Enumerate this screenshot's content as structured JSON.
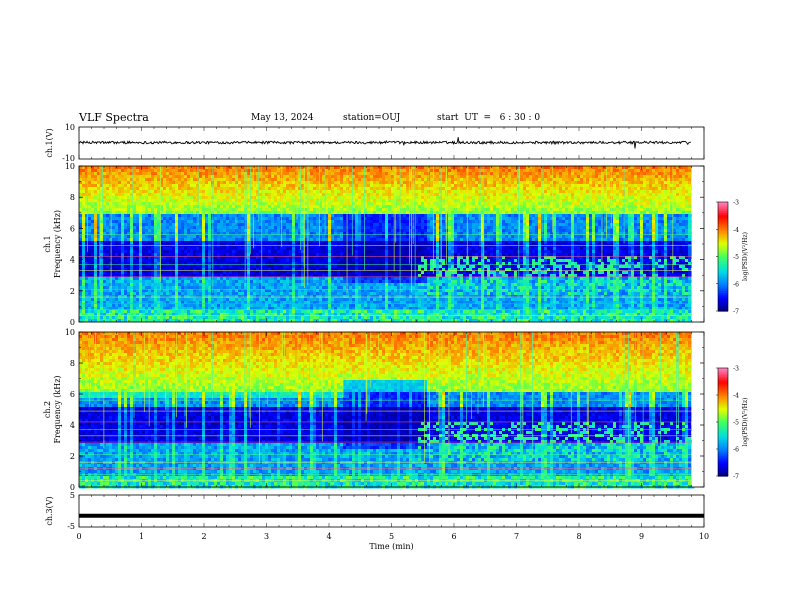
{
  "header": {
    "title": "VLF Spectra",
    "date": "May 13, 2024",
    "station": "station=OUJ",
    "start": "start  UT  =   6 : 30 : 0"
  },
  "chart_data": {
    "type": "heatmap",
    "xlabel": "Time  (min)",
    "x_ticks": [
      "0",
      "1",
      "2",
      "3",
      "4",
      "5",
      "6",
      "7",
      "8",
      "9",
      "10"
    ],
    "xlim": [
      0,
      10
    ],
    "data_end_min": 9.8,
    "panels": [
      {
        "id": "ch1-waveform",
        "type": "line",
        "ylabel": "ch.1(V)",
        "y_ticks": [
          "10",
          "-10"
        ],
        "ylim": [
          -10,
          10
        ]
      },
      {
        "id": "ch1-spectrogram",
        "type": "heatmap",
        "ylabel_line1": "ch.1",
        "ylabel_line2": "Frequency  (kHz)",
        "y_ticks": [
          "0",
          "2",
          "4",
          "6",
          "8",
          "10"
        ],
        "ylim": [
          0,
          10
        ],
        "colorbar": {
          "label": "log(PSD)(V²/Hz)",
          "ticks": [
            "-3",
            "-4",
            "-5",
            "-6",
            "-7"
          ],
          "range": [
            -7,
            -3
          ]
        }
      },
      {
        "id": "ch2-spectrogram",
        "type": "heatmap",
        "ylabel_line1": "ch.2",
        "ylabel_line2": "Frequency  (kHz)",
        "y_ticks": [
          "0",
          "2",
          "4",
          "6",
          "8",
          "10"
        ],
        "ylim": [
          0,
          10
        ],
        "colorbar": {
          "label": "log(PSD)(V²/Hz)",
          "ticks": [
            "-3",
            "-4",
            "-5",
            "-6",
            "-7"
          ],
          "range": [
            -7,
            -3
          ]
        }
      },
      {
        "id": "ch3-waveform",
        "type": "line",
        "ylabel": "ch.3(V)",
        "y_ticks": [
          "5",
          "-5"
        ],
        "ylim": [
          -5,
          5
        ],
        "value": -1.5
      }
    ],
    "colors": {
      "colormap": [
        "#00007a",
        "#0000ff",
        "#0080ff",
        "#00e0e0",
        "#40ff60",
        "#e0ff00",
        "#ff8000",
        "#ff0000",
        "#ff80c0"
      ],
      "line": "#000000"
    }
  }
}
